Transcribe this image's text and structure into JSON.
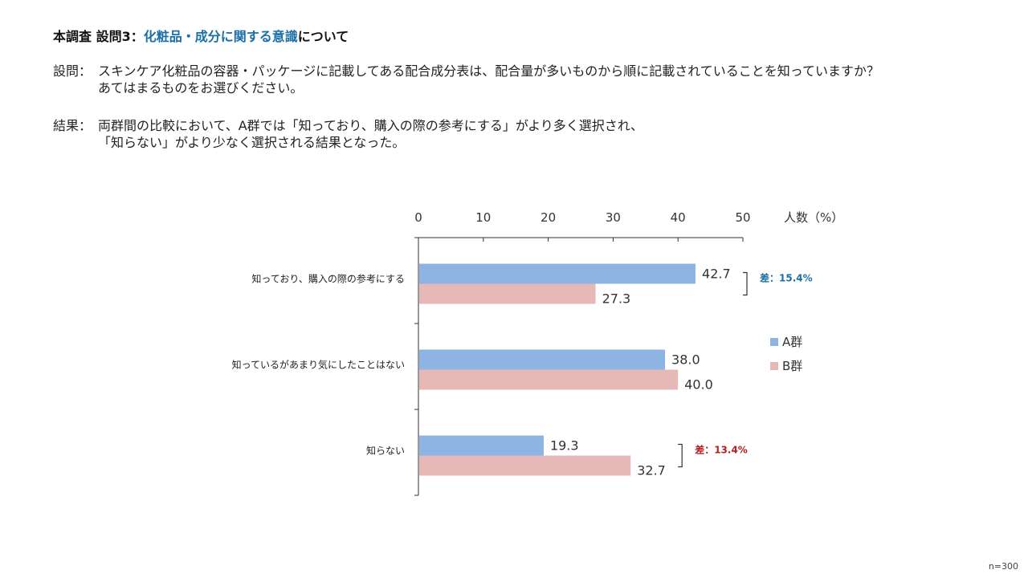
{
  "header": {
    "prefix": "本調査 設問3：",
    "highlight": "化粧品・成分に関する意識",
    "suffix": "について"
  },
  "question": {
    "label": "設問：",
    "line1": "スキンケア化粧品の容器・パッケージに記載してある配合成分表は、配合量が多いものから順に記載されていることを知っていますか？",
    "line2": "あてはまるものをお選びください。"
  },
  "result": {
    "label": "結果：",
    "line1": "両群間の比較において、A群では「知っており、購入の際の参考にする」がより多く選択され、",
    "line2": "「知らない」がより少なく選択される結果となった。"
  },
  "footnote": "n=300",
  "colors": {
    "groupA": "#8eb4e3",
    "groupB": "#e6b9b8",
    "diff1": "#1a6fa6",
    "diff2": "#b22222"
  },
  "chart_data": {
    "type": "bar",
    "orientation": "horizontal",
    "categories": [
      "知っており、購入の際の参考にする",
      "知っているがあまり気にしたことはない",
      "知らない"
    ],
    "series": [
      {
        "name": "A群",
        "values": [
          42.7,
          38.0,
          19.3
        ]
      },
      {
        "name": "B群",
        "values": [
          27.3,
          40.0,
          32.7
        ]
      }
    ],
    "value_labels": [
      [
        "42.7",
        "38.0",
        "19.3"
      ],
      [
        "27.3",
        "40.0",
        "32.7"
      ]
    ],
    "xlim": [
      0,
      50
    ],
    "xticks": [
      "0",
      "10",
      "20",
      "30",
      "40",
      "50"
    ],
    "xlabel": "人数（%）",
    "legend": "right",
    "annotations": [
      {
        "category_index": 0,
        "text": "差：15.4%"
      },
      {
        "category_index": 2,
        "text": "差：13.4%"
      }
    ]
  }
}
